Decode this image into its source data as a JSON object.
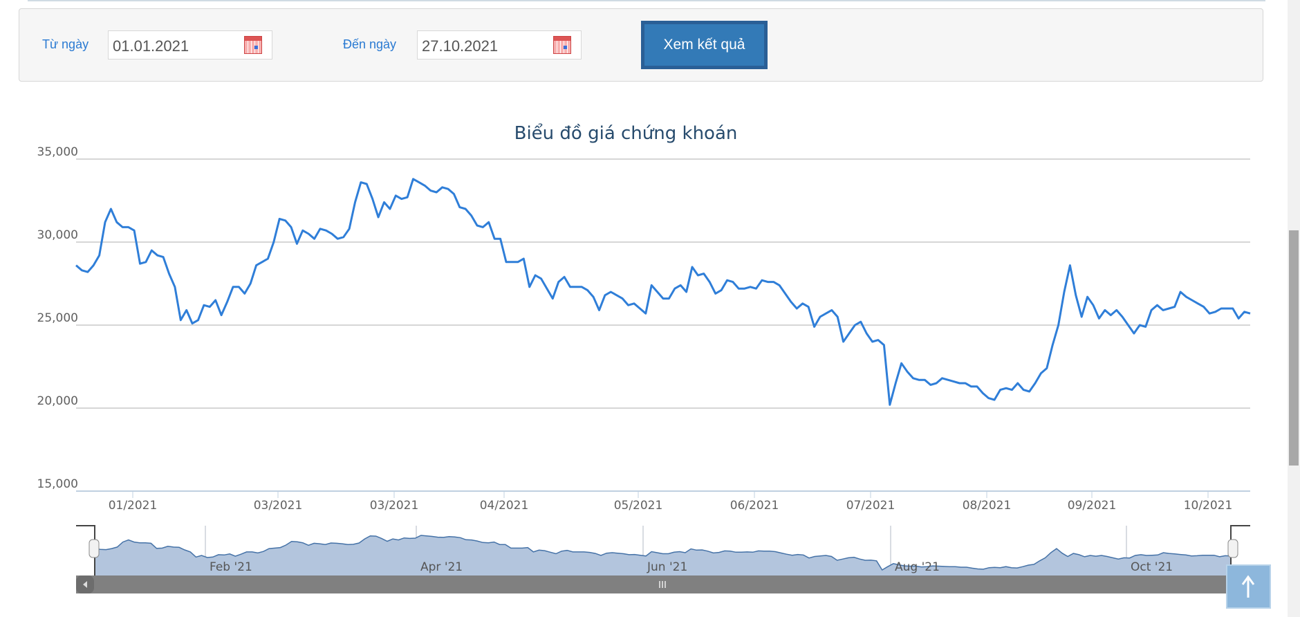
{
  "filter": {
    "from_label": "Từ ngày",
    "from_value": "01.01.2021",
    "to_label": "Đến ngày",
    "to_value": "27.10.2021",
    "submit_label": "Xem kết quả",
    "calendar_icon": "calendar-icon"
  },
  "chart_data": {
    "type": "line",
    "title": "Biểu đồ giá chứng khoán",
    "ylim": [
      15000,
      35000
    ],
    "y_ticks": [
      "15,000",
      "20,000",
      "25,000",
      "30,000",
      "35,000"
    ],
    "x_ticks": [
      "01/2021",
      "03/2021",
      "03/2021",
      "04/2021",
      "05/2021",
      "06/2021",
      "07/2021",
      "08/2021",
      "09/2021",
      "10/2021"
    ],
    "grid": true,
    "line_color": "#2f7ed8",
    "values": [
      28600,
      28300,
      28200,
      28600,
      29200,
      31200,
      32000,
      31200,
      30900,
      30900,
      30700,
      28700,
      28800,
      29500,
      29200,
      29100,
      28100,
      27300,
      25300,
      25900,
      25100,
      25300,
      26200,
      26100,
      26500,
      25600,
      26400,
      27300,
      27300,
      26900,
      27500,
      28600,
      28800,
      29000,
      30000,
      31400,
      31300,
      30900,
      29900,
      30700,
      30500,
      30200,
      30800,
      30700,
      30500,
      30200,
      30300,
      30800,
      32400,
      33600,
      33500,
      32600,
      31500,
      32400,
      32000,
      32800,
      32600,
      32700,
      33800,
      33600,
      33400,
      33100,
      33000,
      33300,
      33200,
      32900,
      32100,
      32000,
      31600,
      31000,
      30900,
      31200,
      30200,
      30200,
      28800,
      28800,
      28800,
      29000,
      27300,
      28000,
      27800,
      27200,
      26600,
      27600,
      27900,
      27300,
      27300,
      27300,
      27100,
      26700,
      25900,
      26800,
      27000,
      26800,
      26600,
      26200,
      26300,
      26000,
      25700,
      27400,
      27000,
      26600,
      26600,
      27200,
      27400,
      27000,
      28500,
      28000,
      28100,
      27600,
      26900,
      27100,
      27700,
      27600,
      27200,
      27200,
      27300,
      27200,
      27700,
      27600,
      27600,
      27400,
      26900,
      26400,
      26000,
      26300,
      26100,
      24900,
      25500,
      25700,
      25900,
      25500,
      24000,
      24500,
      25000,
      25200,
      24500,
      24000,
      24100,
      23800,
      20200,
      21500,
      22700,
      22200,
      21800,
      21700,
      21700,
      21400,
      21500,
      21800,
      21700,
      21600,
      21500,
      21500,
      21300,
      21300,
      20900,
      20600,
      20500,
      21100,
      21200,
      21100,
      21500,
      21100,
      21000,
      21500,
      22100,
      22400,
      23800,
      25000,
      27000,
      28600,
      26800,
      25500,
      26700,
      26200,
      25400,
      25900,
      25600,
      25900,
      25500,
      25000,
      24500,
      25000,
      24900,
      25900,
      26200,
      25900,
      26000,
      26100,
      27000,
      26700,
      26500,
      26300,
      26100,
      25700,
      25800,
      26000,
      26000,
      26000,
      25400,
      25800,
      25700
    ],
    "navigator": {
      "labels": [
        "Feb '21",
        "Apr '21",
        "Jun '21",
        "Aug '21",
        "Oct '21"
      ],
      "fill_color": "#b3c5dd",
      "line_color": "#4572a7"
    }
  },
  "scroll_top_icon": "arrow-up-icon"
}
